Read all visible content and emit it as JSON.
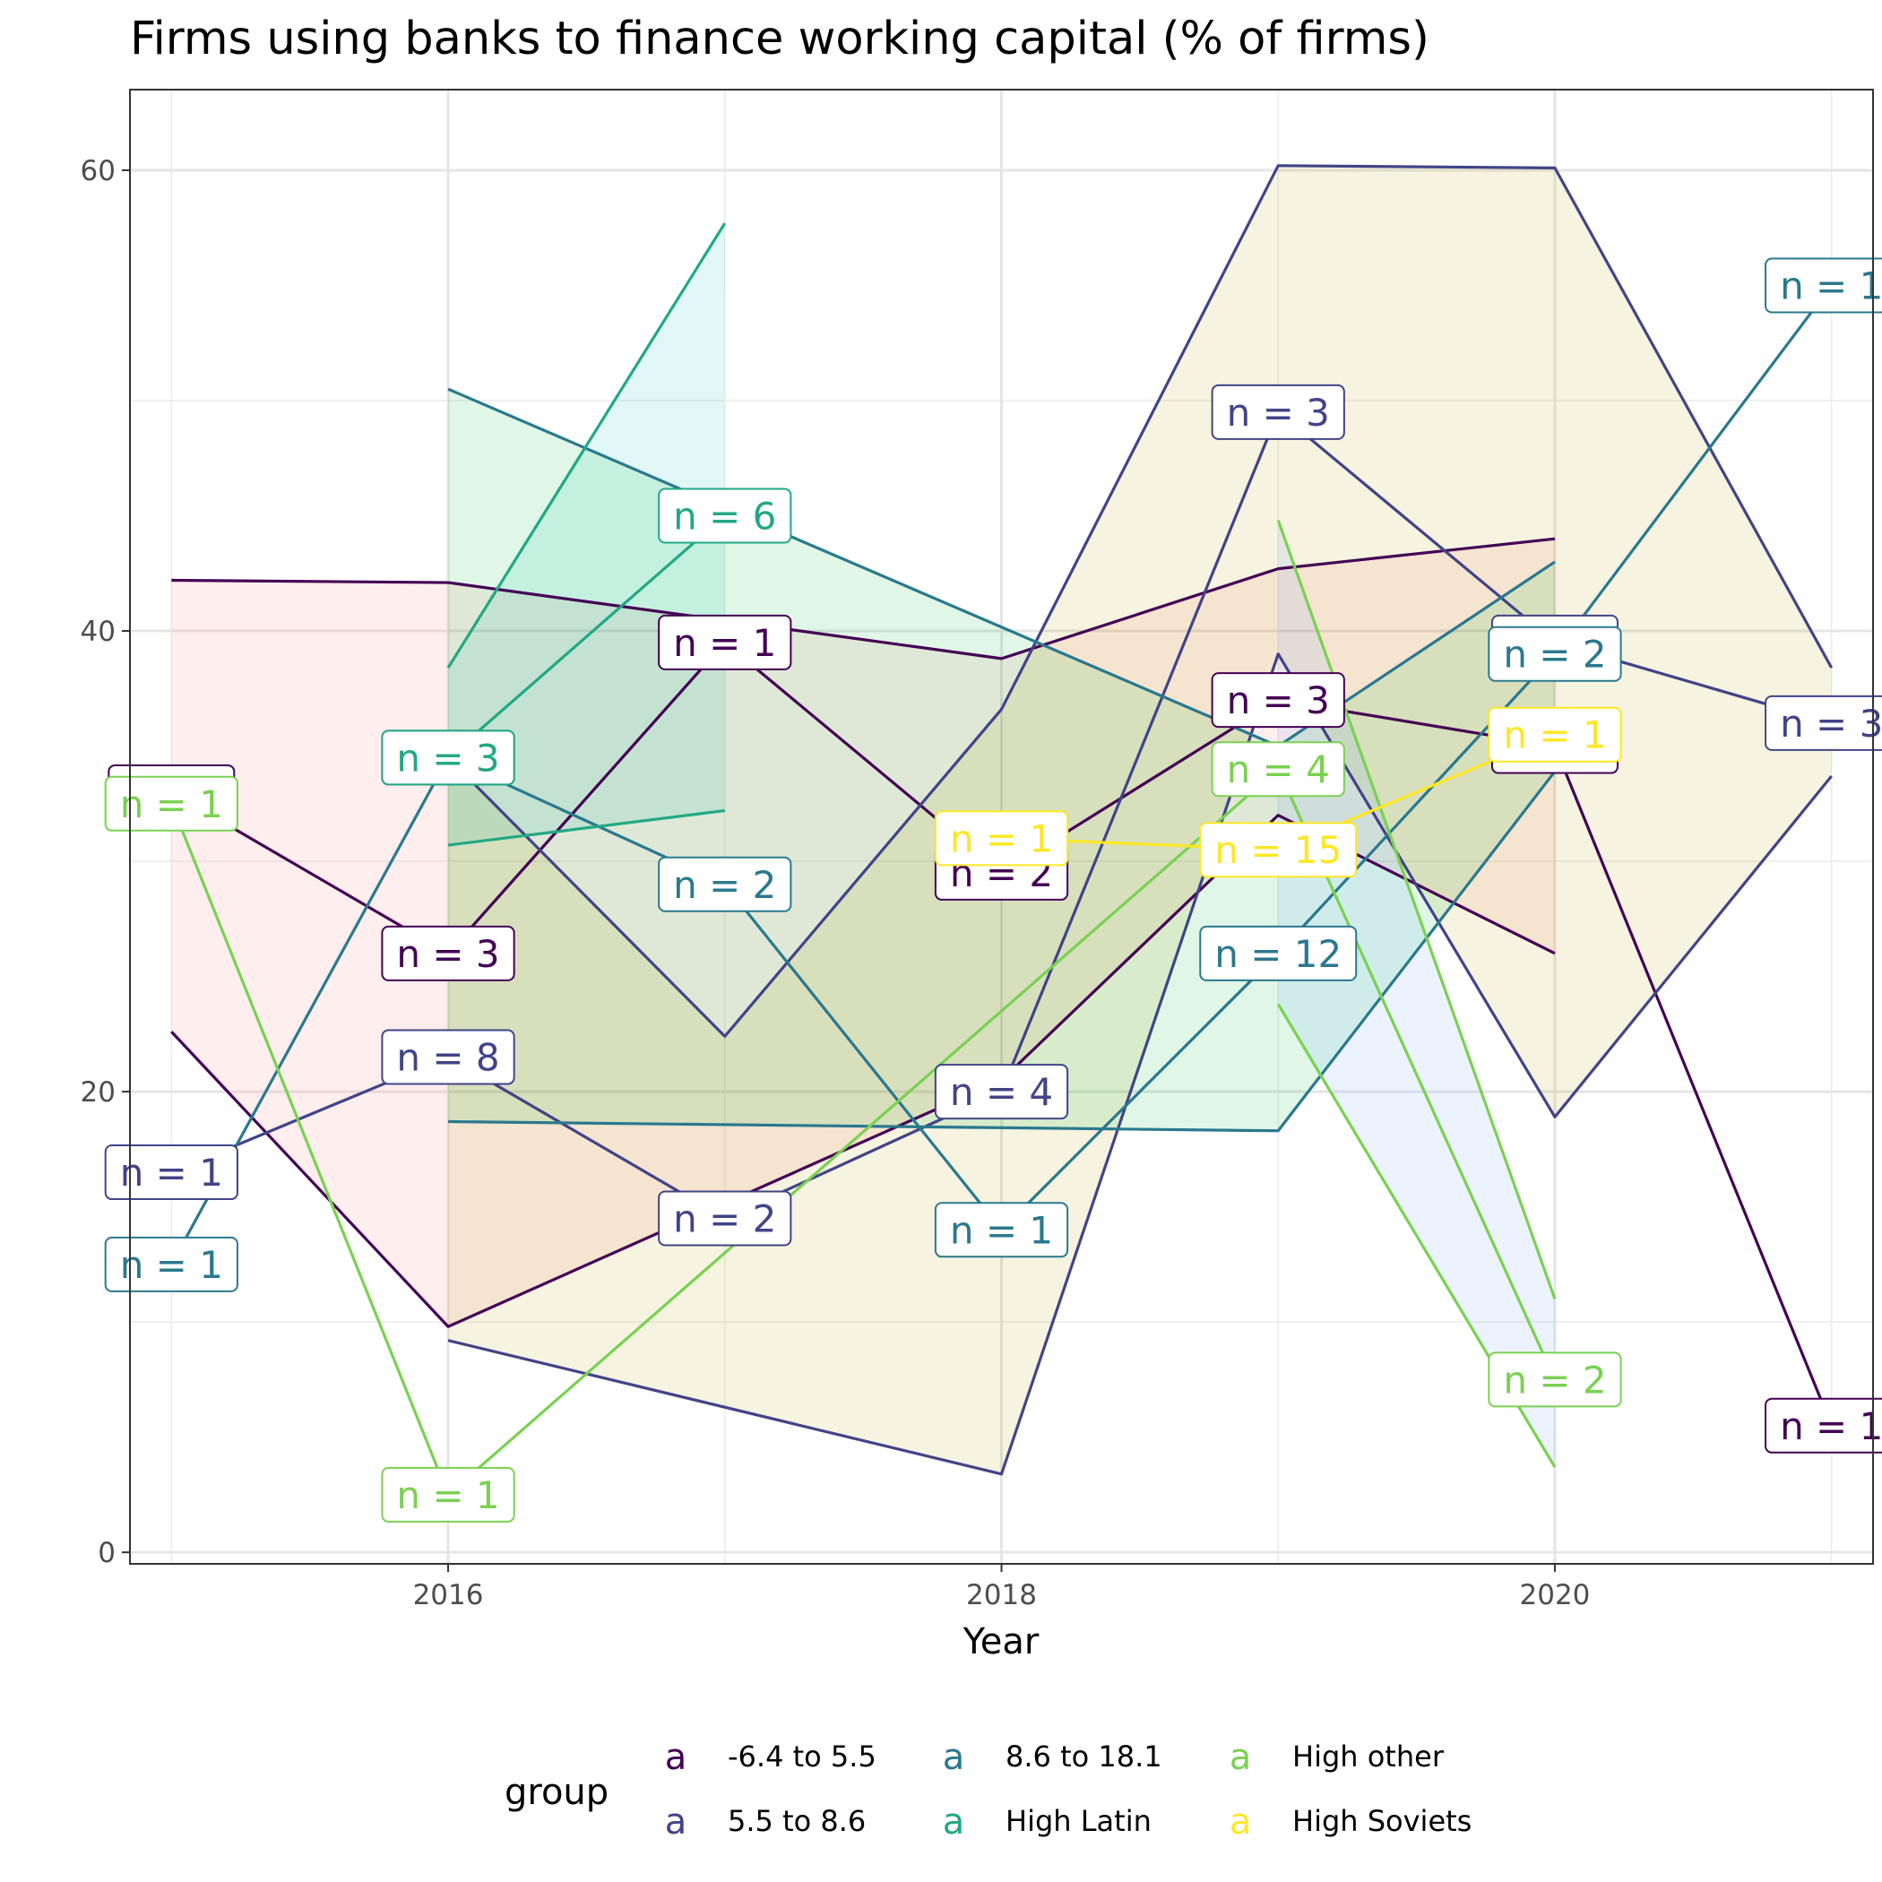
{
  "chart_data": {
    "type": "line",
    "title": "Firms using banks to finance working capital (% of firms)",
    "xlabel": "Year",
    "ylabel": "",
    "xlim": [
      2014.85,
      2021.15
    ],
    "ylim": [
      -0.5,
      63.5
    ],
    "x_ticks": [
      2016,
      2018,
      2020
    ],
    "y_ticks": [
      0,
      20,
      40,
      60
    ],
    "grid": true,
    "legend": {
      "title": "group",
      "position": "bottom",
      "key_glyph": "a",
      "entries": [
        {
          "label": "-6.4 to 5.5",
          "color": "#440154"
        },
        {
          "label": "5.5 to 8.6",
          "color": "#414487"
        },
        {
          "label": "8.6 to 18.1",
          "color": "#2A788E"
        },
        {
          "label": "High Latin",
          "color": "#22A884"
        },
        {
          "label": "High other",
          "color": "#7AD151"
        },
        {
          "label": "High Soviets",
          "color": "#FDE725"
        }
      ]
    },
    "series": [
      {
        "name": "-6.4 to 5.5",
        "color": "#440154",
        "ribbon_fill": "#F8766D",
        "median": [
          [
            2015,
            33
          ],
          [
            2016,
            26
          ],
          [
            2017,
            39.5
          ],
          [
            2018,
            29.5
          ],
          [
            2019,
            37
          ],
          [
            2020,
            35
          ],
          [
            2021,
            5.5
          ]
        ],
        "upper": [
          [
            2015,
            42.2
          ],
          [
            2016,
            42.1
          ],
          [
            2018,
            38.8
          ],
          [
            2019,
            42.7
          ],
          [
            2020,
            44
          ]
        ],
        "lower": [
          [
            2015,
            22.6
          ],
          [
            2016,
            9.8
          ],
          [
            2018,
            20.5
          ],
          [
            2019,
            32
          ],
          [
            2020,
            26
          ]
        ],
        "labels": [
          {
            "x": 2015,
            "y": 33,
            "text": ""
          },
          {
            "x": 2016,
            "y": 26,
            "text": "n = 3"
          },
          {
            "x": 2017,
            "y": 39.5,
            "text": "n = 1"
          },
          {
            "x": 2018,
            "y": 29.5,
            "text": "n = 2"
          },
          {
            "x": 2019,
            "y": 37,
            "text": "n = 3"
          },
          {
            "x": 2020,
            "y": 35,
            "text": ""
          },
          {
            "x": 2021,
            "y": 5.5,
            "text": "n = 1"
          }
        ]
      },
      {
        "name": "5.5 to 8.6",
        "color": "#414487",
        "ribbon_fill": "#B79F00",
        "median": [
          [
            2015,
            16.5
          ],
          [
            2016,
            21.5
          ],
          [
            2017,
            14.5
          ],
          [
            2018,
            20
          ],
          [
            2019,
            49.5
          ],
          [
            2020,
            39.5
          ],
          [
            2021,
            36
          ]
        ],
        "upper": [
          [
            2016,
            34.5
          ],
          [
            2017,
            22.4
          ],
          [
            2018,
            36.6
          ],
          [
            2019,
            60.2
          ],
          [
            2020,
            60.1
          ],
          [
            2021,
            38.4
          ]
        ],
        "lower": [
          [
            2016,
            9.2
          ],
          [
            2018,
            3.4
          ],
          [
            2019,
            39
          ],
          [
            2020,
            18.9
          ],
          [
            2021,
            33.7
          ]
        ],
        "labels": [
          {
            "x": 2015,
            "y": 16.5,
            "text": "n = 1"
          },
          {
            "x": 2016,
            "y": 21.5,
            "text": "n = 8"
          },
          {
            "x": 2017,
            "y": 14.5,
            "text": "n = 2"
          },
          {
            "x": 2018,
            "y": 20,
            "text": "n = 4"
          },
          {
            "x": 2019,
            "y": 49.5,
            "text": "n = 3"
          },
          {
            "x": 2020,
            "y": 39.5,
            "text": ""
          },
          {
            "x": 2021,
            "y": 36,
            "text": "n = 3"
          }
        ]
      },
      {
        "name": "8.6 to 18.1",
        "color": "#2A788E",
        "ribbon_fill": "#00BA38",
        "median": [
          [
            2015,
            12.5
          ],
          [
            2016,
            34.5
          ],
          [
            2017,
            29
          ],
          [
            2018,
            14
          ],
          [
            2019,
            26
          ],
          [
            2020,
            39
          ],
          [
            2021,
            55
          ]
        ],
        "upper": [
          [
            2016,
            50.5
          ],
          [
            2019,
            35
          ],
          [
            2020,
            43
          ]
        ],
        "lower": [
          [
            2016,
            18.7
          ],
          [
            2019,
            18.3
          ],
          [
            2020,
            33.9
          ]
        ],
        "labels": [
          {
            "x": 2015,
            "y": 12.5,
            "text": "n = 1"
          },
          {
            "x": 2016,
            "y": 34.5,
            "text": "n = 3"
          },
          {
            "x": 2017,
            "y": 29,
            "text": "n = 2"
          },
          {
            "x": 2018,
            "y": 14,
            "text": "n = 1"
          },
          {
            "x": 2019,
            "y": 26,
            "text": "n = 12"
          },
          {
            "x": 2020,
            "y": 39,
            "text": "n = 2"
          },
          {
            "x": 2021,
            "y": 55,
            "text": "n = 1"
          }
        ]
      },
      {
        "name": "High Latin",
        "color": "#22A884",
        "ribbon_fill": "#00C0AF",
        "median": [
          [
            2016,
            34.5
          ],
          [
            2017,
            45
          ]
        ],
        "upper": [
          [
            2016,
            38.4
          ],
          [
            2017,
            57.7
          ]
        ],
        "lower": [
          [
            2016,
            30.7
          ],
          [
            2017,
            32.2
          ]
        ],
        "labels": [
          {
            "x": 2016,
            "y": 34.5,
            "text": "n = 3"
          },
          {
            "x": 2017,
            "y": 45,
            "text": "n = 6"
          }
        ]
      },
      {
        "name": "High other",
        "color": "#7AD151",
        "ribbon_fill": "#619CFF",
        "median": [
          [
            2015,
            32.5
          ],
          [
            2016,
            2.5
          ],
          [
            2019,
            34
          ],
          [
            2020,
            7.5
          ]
        ],
        "upper": [
          [
            2019,
            44.8
          ],
          [
            2020,
            11
          ]
        ],
        "lower": [
          [
            2019,
            23.8
          ],
          [
            2020,
            3.7
          ]
        ],
        "labels": [
          {
            "x": 2015,
            "y": 32.5,
            "text": "n = 1"
          },
          {
            "x": 2016,
            "y": 2.5,
            "text": "n = 1"
          },
          {
            "x": 2019,
            "y": 34,
            "text": "n = 4"
          },
          {
            "x": 2020,
            "y": 7.5,
            "text": "n = 2"
          }
        ]
      },
      {
        "name": "High Soviets",
        "color": "#FDE725",
        "ribbon_fill": "#F564E3",
        "median": [
          [
            2018,
            31
          ],
          [
            2019,
            30.5
          ],
          [
            2020,
            35.5
          ]
        ],
        "upper": [],
        "lower": [],
        "labels": [
          {
            "x": 2018,
            "y": 31,
            "text": "n = 1"
          },
          {
            "x": 2019,
            "y": 30.5,
            "text": "n = 15"
          },
          {
            "x": 2020,
            "y": 35.5,
            "text": "n = 1"
          }
        ]
      }
    ]
  }
}
